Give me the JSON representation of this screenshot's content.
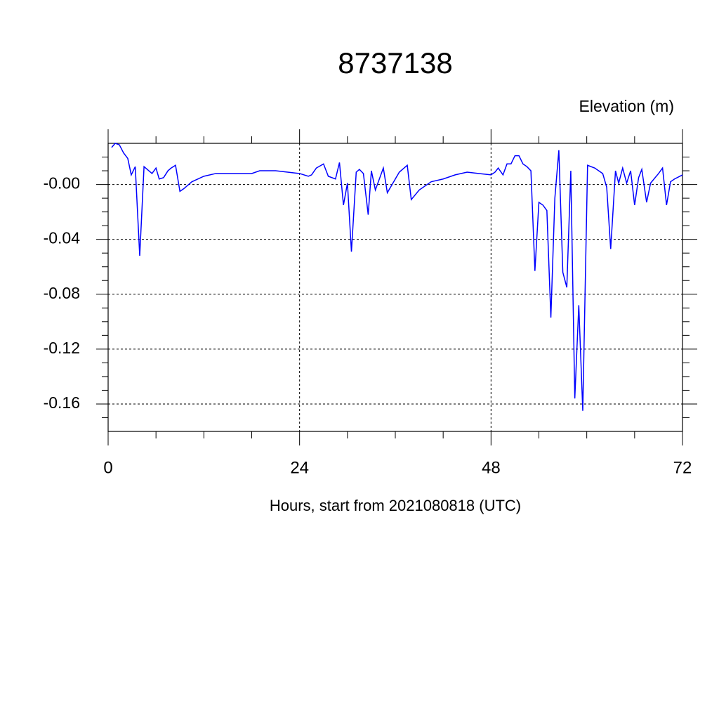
{
  "chart_data": {
    "type": "line",
    "title": "8737138",
    "y_label": "Elevation (m)",
    "x_label": "Hours, start from 2021080818 (UTC)",
    "series": [
      {
        "color": "#0000ff",
        "x": [
          0.44,
          0.88,
          1.4,
          1.94,
          2.46,
          2.9,
          3.4,
          3.96,
          4.5,
          4.9,
          5.5,
          6.0,
          6.4,
          6.95,
          7.5,
          7.9,
          8.45,
          9.0,
          9.5,
          10.5,
          12.0,
          13.5,
          15.0,
          16.5,
          18.0,
          19.0,
          21.0,
          22.5,
          24.0,
          25.1,
          25.5,
          26.1,
          27.0,
          27.6,
          28.5,
          29.0,
          29.5,
          30.0,
          30.5,
          31.1,
          31.5,
          32.0,
          32.6,
          33.0,
          33.5,
          34.5,
          35.0,
          36.5,
          37.5,
          38.0,
          39.0,
          40.5,
          42.0,
          43.5,
          45.0,
          46.5,
          48.0,
          48.5,
          48.9,
          49.5,
          50.0,
          50.5,
          51.0,
          51.5,
          52.0,
          52.5,
          53.0,
          53.5,
          54.0,
          54.5,
          55.0,
          55.5,
          56.0,
          56.5,
          57.0,
          57.5,
          58.0,
          58.5,
          59.0,
          59.5,
          60.1,
          61.0,
          62.0,
          62.5,
          63.0,
          63.6,
          64.0,
          64.5,
          65.0,
          65.5,
          66.0,
          66.5,
          66.9,
          67.5,
          68.0,
          69.0,
          69.5,
          70.0,
          70.5,
          71.0,
          72.0
        ],
        "values": [
          0.027,
          0.03,
          0.029,
          0.023,
          0.019,
          0.007,
          0.013,
          -0.052,
          0.013,
          0.011,
          0.008,
          0.012,
          0.004,
          0.005,
          0.01,
          0.012,
          0.014,
          -0.005,
          -0.003,
          0.002,
          0.006,
          0.008,
          0.008,
          0.008,
          0.008,
          0.01,
          0.01,
          0.009,
          0.008,
          0.006,
          0.007,
          0.012,
          0.015,
          0.006,
          0.004,
          0.016,
          -0.015,
          0.001,
          -0.049,
          0.009,
          0.011,
          0.008,
          -0.022,
          0.01,
          -0.004,
          0.012,
          -0.006,
          0.009,
          0.014,
          -0.011,
          -0.004,
          0.002,
          0.004,
          0.007,
          0.009,
          0.008,
          0.007,
          0.009,
          0.012,
          0.007,
          0.015,
          0.015,
          0.021,
          0.021,
          0.015,
          0.013,
          0.01,
          -0.063,
          -0.013,
          -0.015,
          -0.019,
          -0.097,
          -0.01,
          0.025,
          -0.064,
          -0.075,
          0.01,
          -0.156,
          -0.088,
          -0.165,
          0.014,
          0.012,
          0.008,
          -0.002,
          -0.047,
          0.01,
          0.001,
          0.012,
          0.001,
          0.01,
          -0.015,
          0.005,
          0.011,
          -0.013,
          0.001,
          0.008,
          0.012,
          -0.015,
          0.002,
          0.004,
          0.007
        ]
      }
    ],
    "xlim": [
      0,
      72
    ],
    "xticks": [
      0,
      24,
      48,
      72
    ],
    "xminorticks": [
      6,
      12,
      18,
      30,
      36,
      42,
      54,
      60,
      66
    ],
    "ylim": [
      -0.18,
      0.03
    ],
    "yticks": [
      {
        "value": 0,
        "label": "-0.00"
      },
      -0.04,
      -0.08,
      -0.12,
      -0.16
    ],
    "yminorticks": [
      0.02,
      0.01,
      -0.01,
      -0.02,
      -0.03,
      -0.05,
      -0.06,
      -0.07,
      -0.09,
      -0.1,
      -0.11,
      -0.13,
      -0.14,
      -0.15,
      -0.17
    ],
    "grid": true
  }
}
